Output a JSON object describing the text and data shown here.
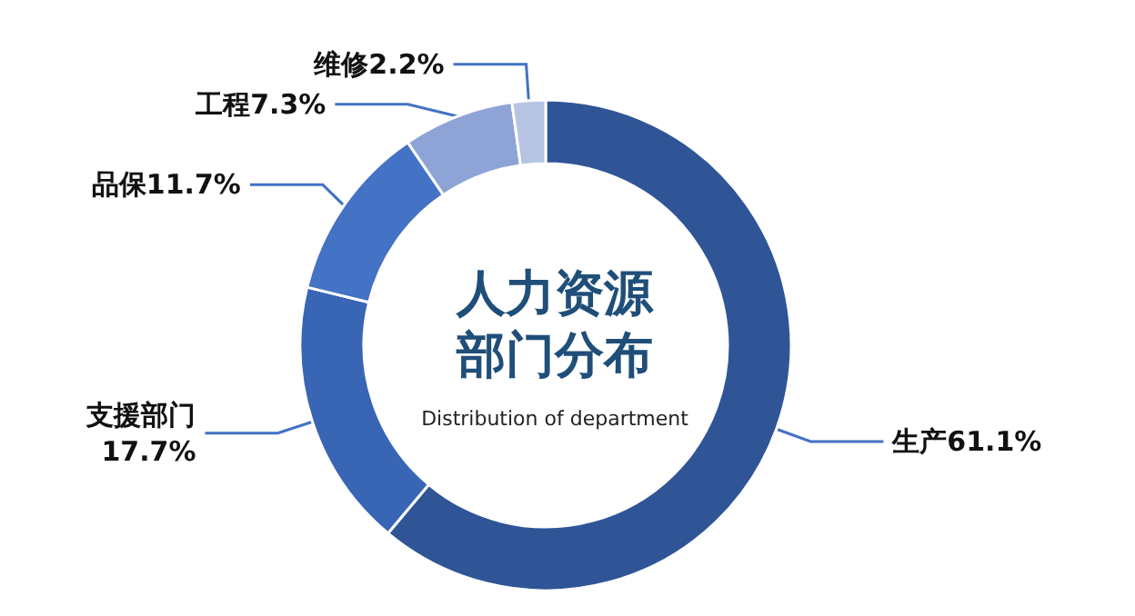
{
  "chart_data": {
    "type": "donut",
    "title": "人力资源部门分布",
    "subtitle": "Distribution of department",
    "categories": [
      "生产",
      "支援部门",
      "品保",
      "工程",
      "维修"
    ],
    "values": [
      61.1,
      17.7,
      11.7,
      7.3,
      2.2
    ],
    "colors": [
      "#2f5597",
      "#3865b4",
      "#4472c4",
      "#8ea3d6",
      "#b6c3e2"
    ],
    "value_labels": [
      "61.1%",
      "17.7%",
      "11.7%",
      "7.3%",
      "2.2%"
    ],
    "legend": false
  }
}
